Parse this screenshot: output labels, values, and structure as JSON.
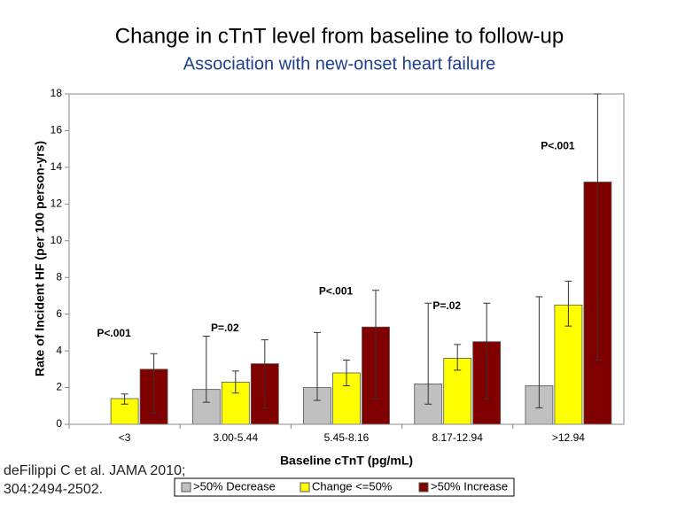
{
  "chart_data": {
    "type": "bar",
    "title": "Change in cTnT level from baseline to follow-up",
    "subtitle": "Association with new-onset heart failure",
    "x_label": "Baseline cTnT (pg/mL)",
    "y_label": "Rate of Incident HF (per 100 person-yrs)",
    "categories": [
      "<3",
      "3.00-5.44",
      "5.45-8.16",
      "8.17-12.94",
      ">12.94"
    ],
    "series": [
      {
        "name": ">50% Decrease",
        "color": "#c0c0c0",
        "values": [
          null,
          1.9,
          2.0,
          2.2,
          2.1
        ],
        "lower": [
          null,
          1.2,
          1.3,
          1.1,
          0.9
        ],
        "upper": [
          null,
          4.8,
          5.0,
          6.6,
          6.95
        ]
      },
      {
        "name": "Change <=50%",
        "color": "#ffff00",
        "values": [
          1.4,
          2.3,
          2.8,
          3.6,
          6.5
        ],
        "lower": [
          1.1,
          1.7,
          2.1,
          2.95,
          5.35
        ],
        "upper": [
          1.65,
          2.9,
          3.5,
          4.35,
          7.8
        ]
      },
      {
        "name": ">50% Increase",
        "color": "#800000",
        "values": [
          3.0,
          3.3,
          5.3,
          4.5,
          13.2
        ],
        "lower": [
          0.6,
          0.9,
          1.4,
          1.4,
          3.5
        ],
        "upper": [
          3.85,
          4.6,
          7.3,
          6.6,
          18
        ]
      }
    ],
    "annotations": [
      "P<.001",
      "P=.02",
      "P<.001",
      "P=.02",
      "P<.001"
    ],
    "ylim": [
      0,
      18
    ],
    "yticks": [
      0,
      2,
      4,
      6,
      8,
      10,
      12,
      14,
      16,
      18
    ],
    "source": [
      "deFilippi C et al.  JAMA 2010;",
      "304:2494-2502."
    ]
  }
}
